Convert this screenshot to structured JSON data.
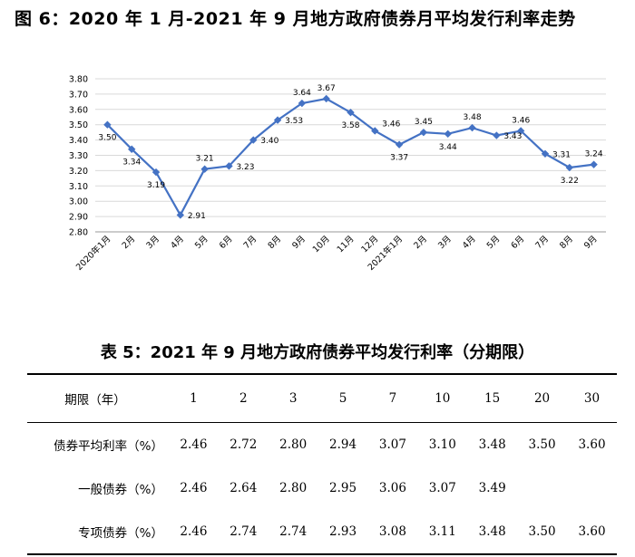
{
  "figure_title": "图 6：2020 年 1 月-2021 年 9 月地方政府债券月平均发行利率走势",
  "table_title": "表 5：2021 年 9 月地方政府债券平均发行利率（分期限）",
  "chart_data": {
    "type": "line",
    "title": "图 6：2020 年 1 月-2021 年 9 月地方政府债券月平均发行利率走势",
    "xlabel": "",
    "ylabel": "",
    "ylim": [
      2.8,
      3.8
    ],
    "ytick_step": 0.1,
    "grid": true,
    "legend": "none",
    "line_color": "#4472C4",
    "categories": [
      "2020年1月",
      "2月",
      "3月",
      "4月",
      "5月",
      "6月",
      "7月",
      "8月",
      "9月",
      "10月",
      "11月",
      "12月",
      "2021年1月",
      "2月",
      "3月",
      "4月",
      "5月",
      "6月",
      "7月",
      "8月",
      "9月"
    ],
    "series": [
      {
        "values": [
          3.5,
          3.34,
          3.19,
          2.91,
          3.21,
          3.23,
          3.4,
          3.53,
          3.64,
          3.67,
          3.58,
          3.46,
          3.37,
          3.45,
          3.44,
          3.48,
          3.43,
          3.46,
          3.31,
          3.22,
          3.24
        ]
      }
    ],
    "data_labels": [
      "3.50",
      "3.34",
      "3.19",
      "2.91",
      "3.21",
      "3.23",
      "3.40",
      "3.53",
      "3.64",
      "3.67",
      "3.58",
      "3.46",
      "3.37",
      "3.45",
      "3.44",
      "3.48",
      "3.43",
      "3.46",
      "3.31",
      "3.22",
      "3.24"
    ],
    "label_pos": [
      "below",
      "below",
      "below",
      "right",
      "above",
      "right",
      "right",
      "right",
      "above",
      "above",
      "below",
      "right-above",
      "below",
      "above",
      "below",
      "above",
      "right",
      "above",
      "right",
      "below",
      "above"
    ]
  },
  "table": {
    "header": {
      "label": "期限（年）",
      "values": [
        "1",
        "2",
        "3",
        "5",
        "7",
        "10",
        "15",
        "20",
        "30"
      ]
    },
    "rows": [
      {
        "label": "债券平均利率（%）",
        "values": [
          "2.46",
          "2.72",
          "2.80",
          "2.94",
          "3.07",
          "3.10",
          "3.48",
          "3.50",
          "3.60"
        ]
      },
      {
        "label": "一般债券（%）",
        "values": [
          "2.46",
          "2.64",
          "2.80",
          "2.95",
          "3.06",
          "3.07",
          "3.49",
          "",
          ""
        ]
      },
      {
        "label": "专项债券（%）",
        "values": [
          "2.46",
          "2.74",
          "2.74",
          "2.93",
          "3.08",
          "3.11",
          "3.48",
          "3.50",
          "3.60"
        ]
      }
    ]
  }
}
